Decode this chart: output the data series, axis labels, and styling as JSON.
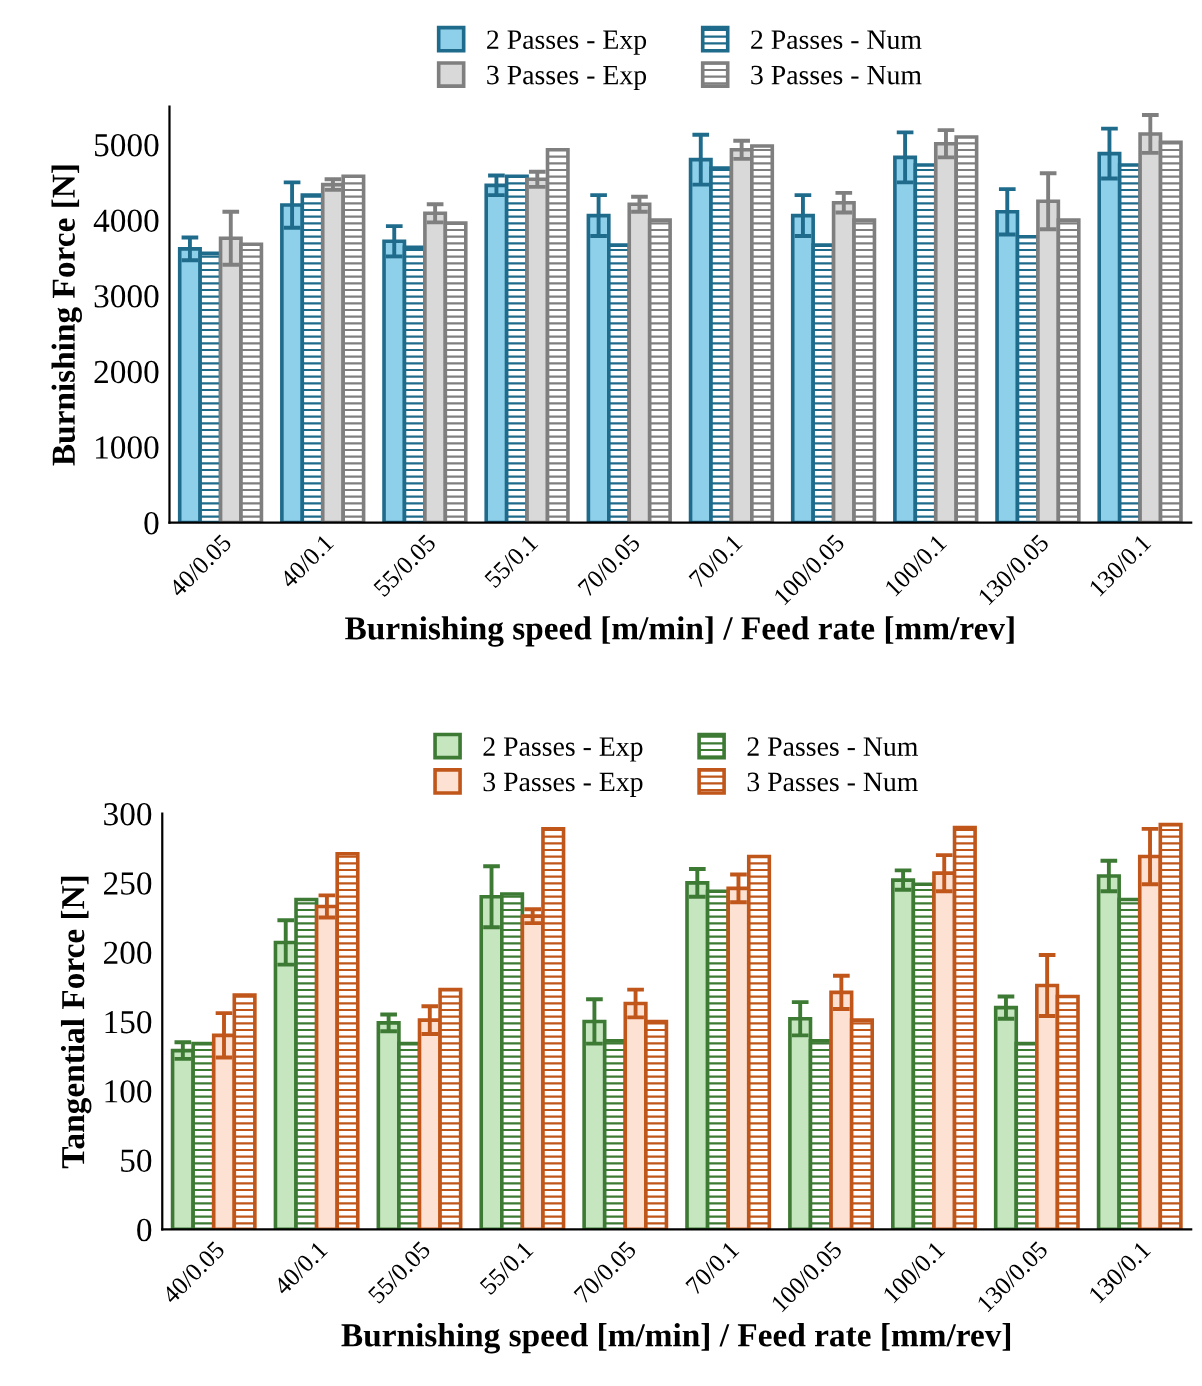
{
  "chart_data": [
    {
      "type": "bar",
      "ylabel": "Burnishing Force [N]",
      "xlabel": "Burnishing speed [m/min] / Feed rate [mm/rev]",
      "categories": [
        "40/0.05",
        "40/0.1",
        "55/0.05",
        "55/0.1",
        "70/0.05",
        "70/0.1",
        "100/0.05",
        "100/0.1",
        "130/0.05",
        "130/0.1"
      ],
      "series": [
        {
          "name": "2 Passes - Exp",
          "color": "#8ecfea",
          "values": [
            3620,
            4200,
            3720,
            4460,
            4060,
            4800,
            4060,
            4830,
            4110,
            4880
          ],
          "errors": [
            150,
            300,
            200,
            130,
            270,
            330,
            270,
            330,
            300,
            330
          ]
        },
        {
          "name": "2 Passes - Num",
          "color": "#1f6b8c",
          "values": [
            3560,
            4330,
            3640,
            4580,
            3670,
            4690,
            3670,
            4730,
            3780,
            4730
          ]
        },
        {
          "name": "3 Passes - Exp",
          "color": "#d9d9d9",
          "values": [
            3760,
            4470,
            4090,
            4540,
            4210,
            4930,
            4230,
            5010,
            4250,
            5140
          ],
          "errors": [
            350,
            70,
            120,
            100,
            100,
            120,
            130,
            180,
            370,
            250
          ]
        },
        {
          "name": "3 Passes - Num",
          "color": "#7f7f7f",
          "values": [
            3680,
            4580,
            3960,
            4930,
            4000,
            4980,
            4000,
            5100,
            4000,
            5030
          ]
        }
      ],
      "ylim": [
        0,
        5500
      ],
      "yticks": [
        0,
        1000,
        2000,
        3000,
        4000,
        5000
      ],
      "grid": false,
      "legend": "top"
    },
    {
      "type": "bar",
      "ylabel": "Tangential Force [N]",
      "xlabel": "Burnishing speed [m/min] / Feed rate [mm/rev]",
      "categories": [
        "40/0.05",
        "40/0.1",
        "55/0.05",
        "55/0.1",
        "70/0.05",
        "70/0.1",
        "100/0.05",
        "100/0.1",
        "130/0.05",
        "130/0.1"
      ],
      "series": [
        {
          "name": "2 Passes - Exp",
          "color": "#c6e6c0",
          "values": [
            129,
            207,
            149,
            240,
            150,
            250,
            152,
            252,
            160,
            255
          ],
          "errors": [
            6,
            16,
            6,
            22,
            16,
            10,
            12,
            7,
            8,
            11
          ]
        },
        {
          "name": "2 Passes - Num",
          "color": "#3d7a34",
          "values": [
            134,
            238,
            134,
            242,
            136,
            244,
            136,
            249,
            134,
            238
          ]
        },
        {
          "name": "3 Passes - Exp",
          "color": "#fde2d4",
          "values": [
            140,
            233,
            151,
            226,
            163,
            246,
            171,
            257,
            176,
            269
          ],
          "errors": [
            16,
            8,
            10,
            5,
            10,
            10,
            12,
            13,
            22,
            20
          ]
        },
        {
          "name": "3 Passes - Num",
          "color": "#c0561a",
          "values": [
            169,
            271,
            173,
            289,
            150,
            269,
            151,
            290,
            168,
            292
          ]
        }
      ],
      "ylim": [
        0,
        300
      ],
      "yticks": [
        0,
        50,
        100,
        150,
        200,
        250,
        300
      ],
      "grid": false,
      "legend": "top"
    }
  ]
}
